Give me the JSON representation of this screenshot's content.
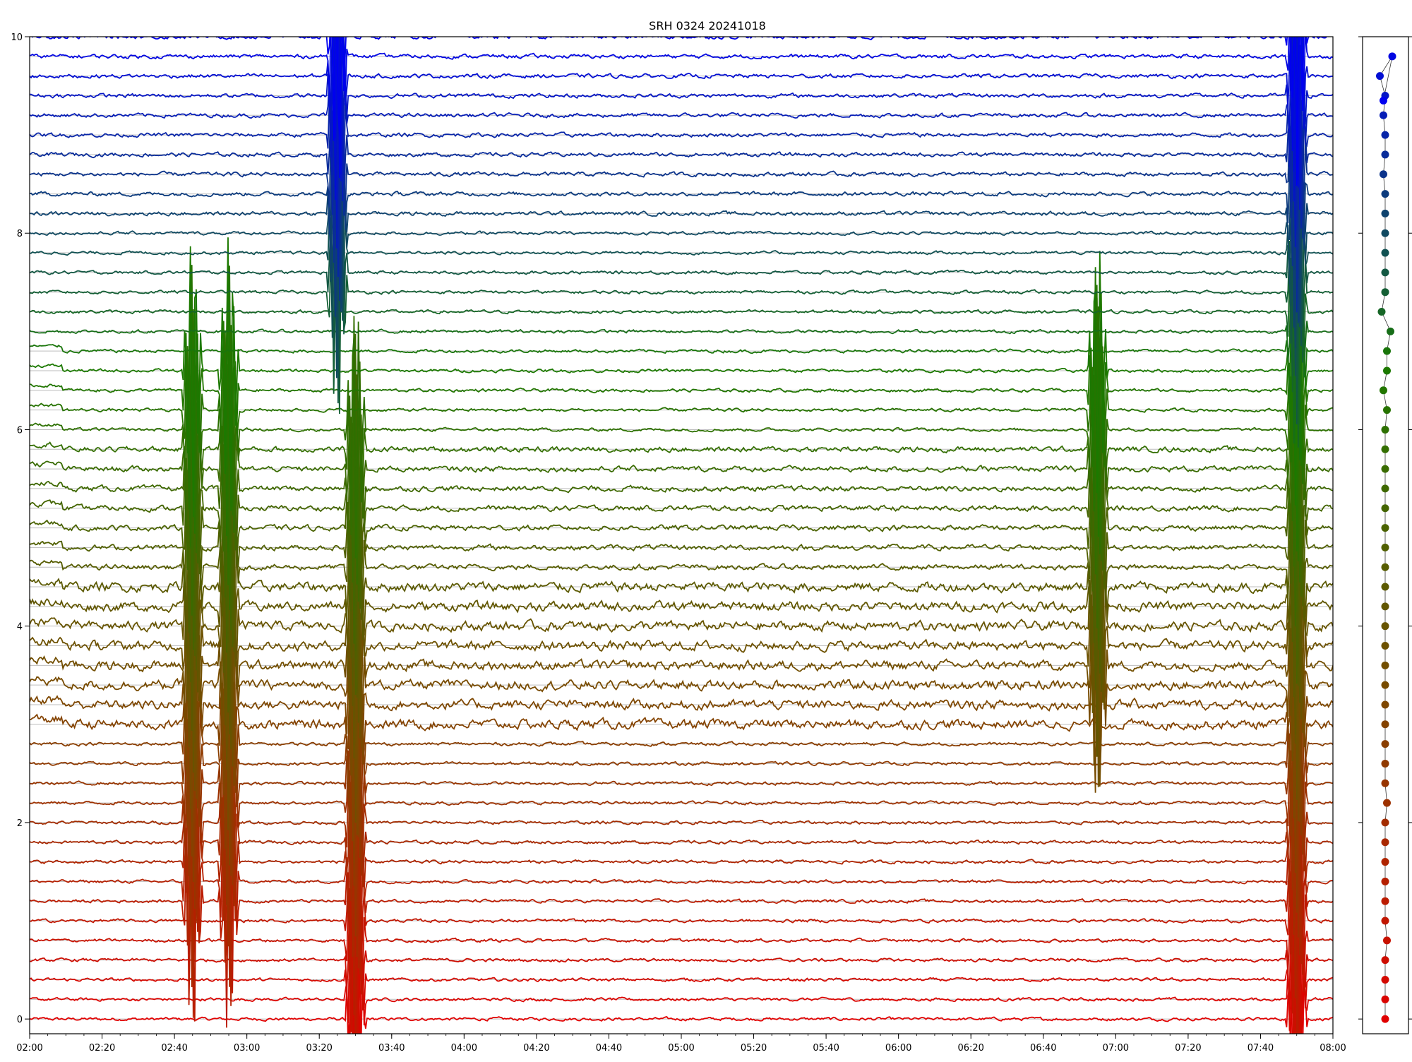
{
  "chart_data": {
    "type": "line",
    "title": "SRH 0324 20241018",
    "xlabel": "",
    "ylabel": "",
    "x_range": [
      "02:00",
      "08:00"
    ],
    "ylim": [
      -0.15,
      10
    ],
    "x_ticks": [
      "02:00",
      "02:20",
      "02:40",
      "03:00",
      "03:20",
      "03:40",
      "04:00",
      "04:20",
      "04:40",
      "05:00",
      "05:20",
      "05:40",
      "06:00",
      "06:20",
      "06:40",
      "07:00",
      "07:20",
      "07:40",
      "08:00"
    ],
    "y_ticks": [
      "0",
      "2",
      "4",
      "6",
      "8",
      "10"
    ],
    "grid": "horizontal lines at each channel baseline",
    "channel_count": 51,
    "channel_spacing": 0.2,
    "channel_color_start": "#e00000",
    "channel_color_mid_brown": "#7a4a00",
    "channel_color_mid_green": "#1a7a00",
    "channel_color_end": "#0000f0",
    "channel_offsets": [
      0,
      0,
      0,
      0,
      0.01,
      0,
      0,
      0,
      0,
      0,
      0,
      0.01,
      0,
      0,
      0,
      0,
      0,
      0,
      0,
      0,
      0,
      0,
      0,
      0,
      0,
      0,
      0,
      0,
      0,
      0,
      0,
      0.01,
      -0.01,
      0.01,
      0.01,
      0.03,
      -0.02,
      0,
      0,
      0,
      0,
      0,
      0,
      -0.01,
      0,
      0,
      -0.01,
      0,
      -0.03,
      0.04,
      -0.01
    ],
    "events": [
      {
        "time": "02:45",
        "channels": "6-33",
        "amplitude": "large"
      },
      {
        "time": "02:55",
        "channels": "6-33",
        "amplitude": "large"
      },
      {
        "time": "03:25",
        "channels": "37-50",
        "amplitude": "large"
      },
      {
        "time": "03:30",
        "channels": "0-30",
        "amplitude": "large"
      },
      {
        "time": "06:55",
        "channels": "17-33",
        "amplitude": "large"
      },
      {
        "time": "07:50",
        "channels": "0-50",
        "amplitude": "large"
      }
    ],
    "side_panel": {
      "type": "scatter",
      "points": 51,
      "description_values": [
        0.0,
        0.2,
        0.4,
        0.6,
        0.8,
        1.0,
        1.2,
        1.4,
        1.6,
        1.8,
        2.0,
        2.2,
        2.4,
        2.6,
        2.8,
        3.0,
        3.2,
        3.4,
        3.6,
        3.8,
        4.0,
        4.2,
        4.4,
        4.6,
        4.8,
        5.0,
        5.2,
        5.4,
        5.6,
        5.8,
        6.0,
        6.2,
        6.4,
        6.6,
        6.8,
        7.0,
        7.2,
        7.4,
        7.6,
        7.8,
        8.0,
        8.2,
        8.4,
        8.6,
        8.8,
        9.0,
        9.2,
        9.4,
        9.6,
        9.8,
        10.0
      ]
    }
  }
}
